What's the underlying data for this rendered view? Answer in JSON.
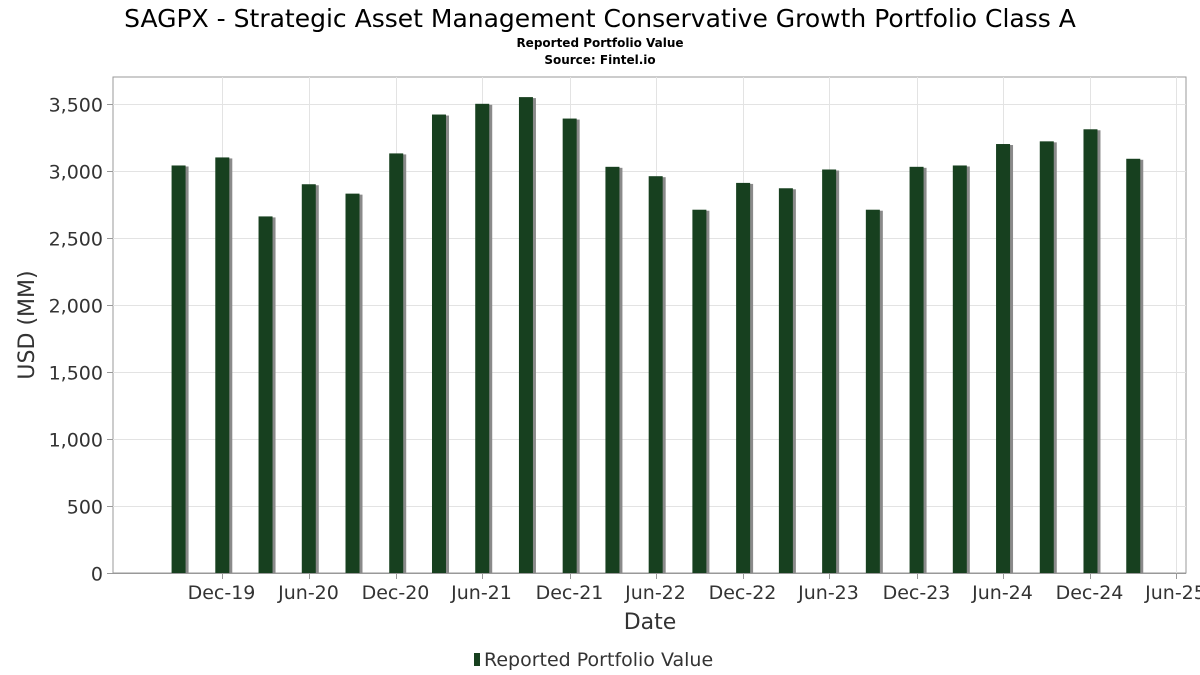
{
  "chart_data": {
    "type": "bar",
    "title": "SAGPX - Strategic Asset Management Conservative Growth Portfolio Class A",
    "subtitle": "Reported Portfolio Value",
    "source": "Source: Fintel.io",
    "xlabel": "Date",
    "ylabel": "USD (MM)",
    "ylim": [
      0,
      3700
    ],
    "yticks": [
      0,
      500,
      1000,
      1500,
      2000,
      2500,
      3000,
      3500
    ],
    "ytick_labels": [
      "0",
      "500",
      "1,000",
      "1,500",
      "2,000",
      "2,500",
      "3,000",
      "3,500"
    ],
    "xlim": [
      "2019-05-15",
      "2025-07-20"
    ],
    "xticks": [
      {
        "label": "Dec-19",
        "date": "2019-12-31"
      },
      {
        "label": "Jun-20",
        "date": "2020-06-30"
      },
      {
        "label": "Dec-20",
        "date": "2020-12-31"
      },
      {
        "label": "Jun-21",
        "date": "2021-06-30"
      },
      {
        "label": "Dec-21",
        "date": "2021-12-31"
      },
      {
        "label": "Jun-22",
        "date": "2022-06-30"
      },
      {
        "label": "Dec-22",
        "date": "2022-12-31"
      },
      {
        "label": "Jun-23",
        "date": "2023-06-30"
      },
      {
        "label": "Dec-23",
        "date": "2023-12-31"
      },
      {
        "label": "Jun-24",
        "date": "2024-06-30"
      },
      {
        "label": "Dec-24",
        "date": "2024-12-31"
      },
      {
        "label": "Jun-25",
        "date": "2025-06-30"
      }
    ],
    "grid": true,
    "legend_position": "bottom-center",
    "series": [
      {
        "name": "Reported Portfolio Value",
        "color": "#17401f",
        "points": [
          {
            "date": "2019-09-30",
            "value": 3040
          },
          {
            "date": "2019-12-31",
            "value": 3100
          },
          {
            "date": "2020-03-31",
            "value": 2660
          },
          {
            "date": "2020-06-30",
            "value": 2900
          },
          {
            "date": "2020-09-30",
            "value": 2830
          },
          {
            "date": "2020-12-31",
            "value": 3130
          },
          {
            "date": "2021-03-31",
            "value": 3420
          },
          {
            "date": "2021-06-30",
            "value": 3500
          },
          {
            "date": "2021-09-30",
            "value": 3550
          },
          {
            "date": "2021-12-31",
            "value": 3390
          },
          {
            "date": "2022-03-31",
            "value": 3030
          },
          {
            "date": "2022-06-30",
            "value": 2960
          },
          {
            "date": "2022-09-30",
            "value": 2710
          },
          {
            "date": "2022-12-31",
            "value": 2910
          },
          {
            "date": "2023-03-31",
            "value": 2870
          },
          {
            "date": "2023-06-30",
            "value": 3010
          },
          {
            "date": "2023-09-30",
            "value": 2710
          },
          {
            "date": "2023-12-31",
            "value": 3030
          },
          {
            "date": "2024-03-31",
            "value": 3040
          },
          {
            "date": "2024-06-30",
            "value": 3200
          },
          {
            "date": "2024-09-30",
            "value": 3220
          },
          {
            "date": "2024-12-31",
            "value": 3310
          },
          {
            "date": "2025-03-31",
            "value": 3090
          }
        ]
      }
    ]
  },
  "colors": {
    "bar": "#17401f",
    "bar_shadow": "#8a8a8a",
    "grid": "#e3e3e3",
    "axis": "#999999"
  }
}
